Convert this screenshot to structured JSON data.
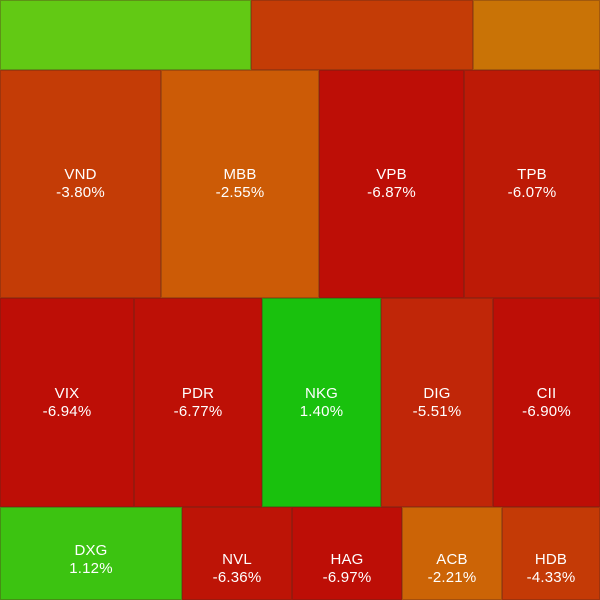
{
  "heatmap": {
    "tiles": [
      {
        "symbol": "",
        "change": "",
        "color": "#62c914"
      },
      {
        "symbol": "",
        "change": "",
        "color": "#c43c06"
      },
      {
        "symbol": "",
        "change": "",
        "color": "#c97306"
      },
      {
        "symbol": "VND",
        "change": "-3.80%",
        "color": "#c43c06"
      },
      {
        "symbol": "MBB",
        "change": "-2.55%",
        "color": "#cc5b06"
      },
      {
        "symbol": "VPB",
        "change": "-6.87%",
        "color": "#bd0e06"
      },
      {
        "symbol": "TPB",
        "change": "-6.07%",
        "color": "#bd1a06"
      },
      {
        "symbol": "VIX",
        "change": "-6.94%",
        "color": "#bd0e06"
      },
      {
        "symbol": "PDR",
        "change": "-6.77%",
        "color": "#bd1006"
      },
      {
        "symbol": "NKG",
        "change": "1.40%",
        "color": "#19c10d"
      },
      {
        "symbol": "DIG",
        "change": "-5.51%",
        "color": "#c02608"
      },
      {
        "symbol": "CII",
        "change": "-6.90%",
        "color": "#bd0e06"
      },
      {
        "symbol": "DXG",
        "change": "1.12%",
        "color": "#3cc311"
      },
      {
        "symbol": "NVL",
        "change": "-6.36%",
        "color": "#bd1406"
      },
      {
        "symbol": "HAG",
        "change": "-6.97%",
        "color": "#bd0e06"
      },
      {
        "symbol": "ACB",
        "change": "-2.21%",
        "color": "#cc6406"
      },
      {
        "symbol": "HDB",
        "change": "-4.33%",
        "color": "#c43a06"
      }
    ]
  }
}
